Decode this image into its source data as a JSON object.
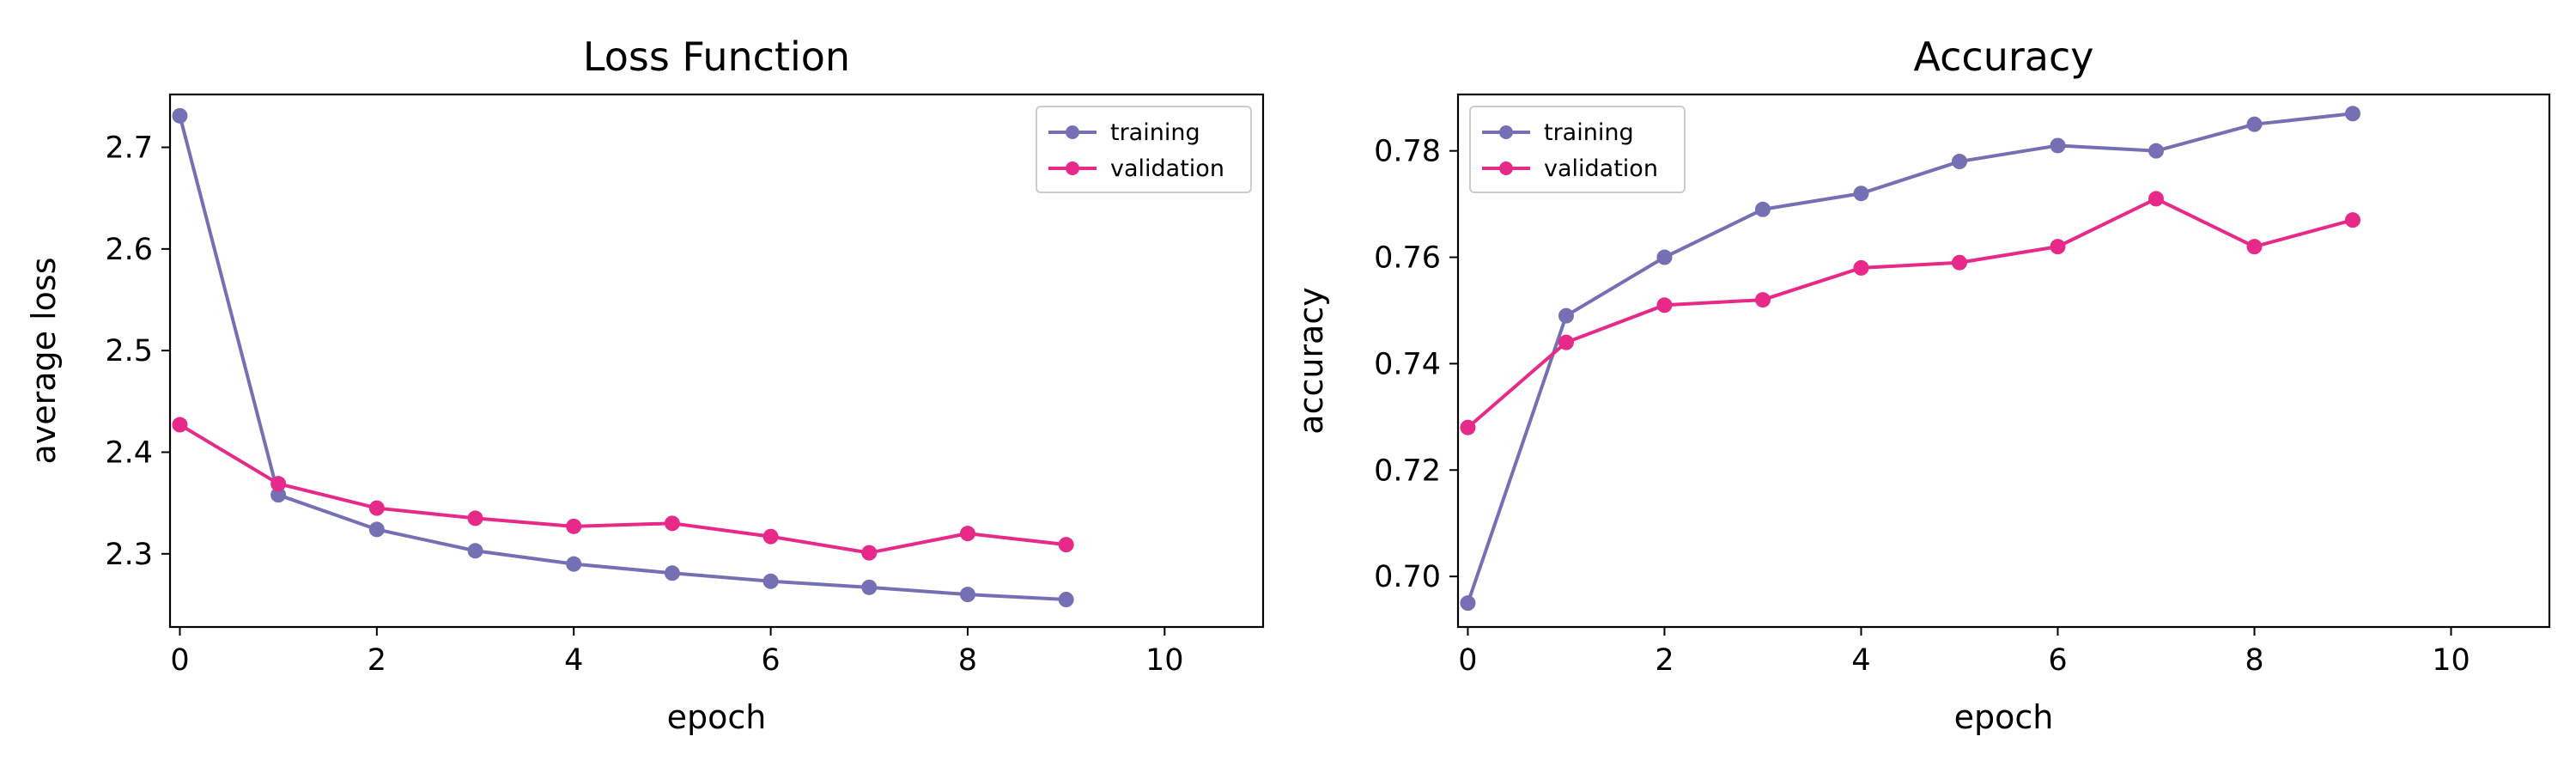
{
  "chart_data": [
    {
      "type": "line",
      "title": "Loss Function",
      "xlabel": "epoch",
      "ylabel": "average loss",
      "xlim": [
        -0.1,
        11
      ],
      "ylim": [
        2.228,
        2.752
      ],
      "xticks": [
        0,
        2,
        4,
        6,
        8,
        10
      ],
      "yticks": [
        2.3,
        2.4,
        2.5,
        2.6,
        2.7
      ],
      "grid": false,
      "legend_position": "top-right",
      "x": [
        0,
        1,
        2,
        3,
        4,
        5,
        6,
        7,
        8,
        9
      ],
      "series": [
        {
          "name": "training",
          "color": "#7570b3",
          "values": [
            2.731,
            2.358,
            2.324,
            2.303,
            2.29,
            2.281,
            2.273,
            2.267,
            2.26,
            2.255
          ]
        },
        {
          "name": "validation",
          "color": "#e7298a",
          "values": [
            2.427,
            2.369,
            2.345,
            2.335,
            2.327,
            2.33,
            2.317,
            2.301,
            2.32,
            2.309
          ]
        }
      ]
    },
    {
      "type": "line",
      "title": "Accuracy",
      "xlabel": "epoch",
      "ylabel": "accuracy",
      "xlim": [
        -0.1,
        11
      ],
      "ylim": [
        0.6905,
        0.7906
      ],
      "xticks": [
        0,
        2,
        4,
        6,
        8,
        10
      ],
      "yticks": [
        0.7,
        0.72,
        0.74,
        0.76,
        0.78
      ],
      "grid": false,
      "legend_position": "top-left",
      "x": [
        0,
        1,
        2,
        3,
        4,
        5,
        6,
        7,
        8,
        9
      ],
      "series": [
        {
          "name": "training",
          "color": "#7570b3",
          "values": [
            0.695,
            0.749,
            0.76,
            0.769,
            0.772,
            0.778,
            0.781,
            0.78,
            0.785,
            0.787
          ]
        },
        {
          "name": "validation",
          "color": "#e7298a",
          "values": [
            0.728,
            0.744,
            0.751,
            0.752,
            0.758,
            0.759,
            0.762,
            0.771,
            0.762,
            0.767
          ]
        }
      ]
    }
  ]
}
